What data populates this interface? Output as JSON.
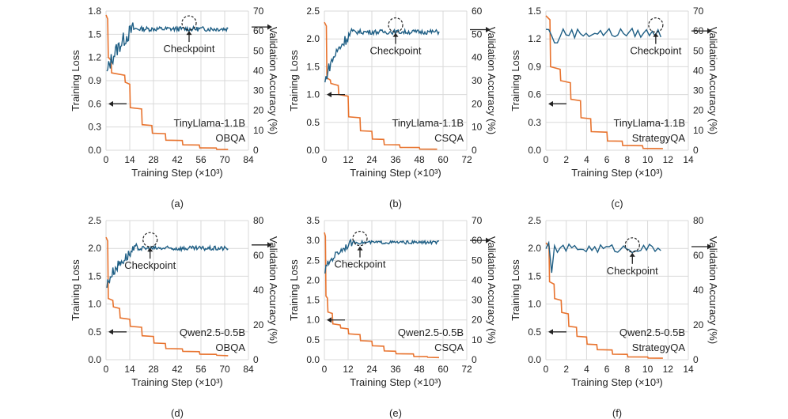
{
  "figure": {
    "loss_color": "#E8732E",
    "acc_color": "#1F5F85",
    "grid_color": "#D9D9D9",
    "common": {
      "xlabel": "Training Step (×10³)",
      "ylabel_left": "Training Loss",
      "ylabel_right": "Validation Accuracy (%)",
      "checkpoint_label": "Checkpoint"
    }
  },
  "chart_data": [
    {
      "type": "line",
      "panel": "(a)",
      "model": "TinyLlama-1.1B",
      "dataset": "OBQA",
      "xlim": [
        0,
        84
      ],
      "xticks": [
        0,
        14,
        28,
        42,
        56,
        70,
        84
      ],
      "ylim_left": [
        0,
        1.8
      ],
      "yticks_left": [
        0,
        0.3,
        0.6,
        0.9,
        1.2,
        1.5,
        1.8
      ],
      "ylim_right": [
        0,
        70
      ],
      "yticks_right": [
        0,
        10,
        20,
        30,
        40,
        50,
        60,
        70
      ],
      "loss_curve": {
        "x_end": 72,
        "start": 1.75,
        "steps": [
          [
            1,
            1.2
          ],
          [
            3,
            1.0
          ],
          [
            11,
            0.88
          ],
          [
            14,
            0.55
          ],
          [
            21,
            0.33
          ],
          [
            27,
            0.22
          ],
          [
            35,
            0.13
          ],
          [
            45,
            0.07
          ],
          [
            55,
            0.03
          ],
          [
            65,
            0.01
          ]
        ]
      },
      "acc_curve": {
        "x_start": 0.5,
        "x_end": 72,
        "start": 33,
        "plateau": 61,
        "rise_end": 16,
        "noise": 4.0,
        "tail_noise": 1.2,
        "n": 140
      },
      "checkpoint_x": 49,
      "checkpoint_acc": 64,
      "left_arrow_y": 0.6,
      "right_arrow_y": 62,
      "label_pos": "bottom-right",
      "checkpoint_label_pos": "below"
    },
    {
      "type": "line",
      "panel": "(b)",
      "model": "TinyLlama-1.1B",
      "dataset": "CSQA",
      "xlim": [
        0,
        72
      ],
      "xticks": [
        0,
        12,
        24,
        36,
        48,
        60,
        72
      ],
      "ylim_left": [
        0,
        2.5
      ],
      "yticks_left": [
        0,
        0.5,
        1.0,
        1.5,
        2.0,
        2.5
      ],
      "ylim_right": [
        0,
        60
      ],
      "yticks_right": [
        0,
        10,
        20,
        30,
        40,
        50,
        60
      ],
      "loss_curve": {
        "x_end": 57,
        "start": 2.3,
        "steps": [
          [
            1,
            1.3
          ],
          [
            3,
            1.2
          ],
          [
            7,
            1.0
          ],
          [
            12,
            0.6
          ],
          [
            18,
            0.35
          ],
          [
            24,
            0.2
          ],
          [
            30,
            0.1
          ],
          [
            38,
            0.05
          ],
          [
            48,
            0.02
          ]
        ]
      },
      "acc_curve": {
        "x_start": 0.3,
        "x_end": 58,
        "start": 25,
        "plateau": 51,
        "rise_end": 14,
        "noise": 2.5,
        "tail_noise": 1.0,
        "n": 120
      },
      "checkpoint_x": 36,
      "checkpoint_acc": 54,
      "left_arrow_y": 1.0,
      "right_arrow_y": 52,
      "label_pos": "bottom-right",
      "checkpoint_label_pos": "below"
    },
    {
      "type": "line",
      "panel": "(c)",
      "model": "TinyLlama-1.1B",
      "dataset": "StrategyQA",
      "xlim": [
        0,
        14
      ],
      "xticks": [
        0,
        2,
        4,
        6,
        8,
        10,
        12,
        14
      ],
      "ylim_left": [
        0,
        1.5
      ],
      "yticks_left": [
        0,
        0.3,
        0.6,
        0.9,
        1.2,
        1.5
      ],
      "ylim_right": [
        0,
        70
      ],
      "yticks_right": [
        0,
        10,
        20,
        30,
        40,
        50,
        60,
        70
      ],
      "loss_curve": {
        "x_end": 11.5,
        "start": 1.45,
        "steps": [
          [
            0.4,
            0.9
          ],
          [
            1.4,
            0.75
          ],
          [
            2.4,
            0.55
          ],
          [
            3.4,
            0.35
          ],
          [
            4.4,
            0.2
          ],
          [
            6,
            0.1
          ],
          [
            7.5,
            0.05
          ],
          [
            9.5,
            0.02
          ]
        ]
      },
      "acc_curve": {
        "x_start": 0,
        "x_end": 11.3,
        "start": 61,
        "plateau": 59,
        "rise_end": 0.5,
        "noise": 2.5,
        "tail_noise": 2.5,
        "n": 40,
        "dip_at": 1.0,
        "dip_val": 54
      },
      "checkpoint_x": 10.8,
      "checkpoint_acc": 63,
      "left_arrow_y": 0.5,
      "right_arrow_y": 60,
      "label_pos": "bottom-right",
      "checkpoint_label_pos": "below"
    },
    {
      "type": "line",
      "panel": "(d)",
      "model": "Qwen2.5-0.5B",
      "dataset": "OBQA",
      "xlim": [
        0,
        84
      ],
      "xticks": [
        0,
        14,
        28,
        42,
        56,
        70,
        84
      ],
      "ylim_left": [
        0,
        2.5
      ],
      "yticks_left": [
        0,
        0.5,
        1.0,
        1.5,
        2.0,
        2.5
      ],
      "ylim_right": [
        0,
        80
      ],
      "yticks_right": [
        0,
        20,
        40,
        60,
        80
      ],
      "loss_curve": {
        "x_end": 72,
        "start": 2.2,
        "steps": [
          [
            1,
            1.1
          ],
          [
            4,
            0.95
          ],
          [
            8,
            0.75
          ],
          [
            14,
            0.6
          ],
          [
            21,
            0.43
          ],
          [
            28,
            0.3
          ],
          [
            35,
            0.2
          ],
          [
            45,
            0.15
          ],
          [
            55,
            0.1
          ],
          [
            65,
            0.08
          ]
        ]
      },
      "acc_curve": {
        "x_start": 0.5,
        "x_end": 72,
        "start": 38,
        "plateau": 64,
        "rise_end": 18,
        "noise": 3.0,
        "tail_noise": 1.3,
        "n": 140
      },
      "checkpoint_x": 26,
      "checkpoint_acc": 69,
      "left_arrow_y": 0.5,
      "right_arrow_y": 66,
      "label_pos": "bottom-right",
      "checkpoint_label_pos": "below"
    },
    {
      "type": "line",
      "panel": "(e)",
      "model": "Qwen2.5-0.5B",
      "dataset": "CSQA",
      "xlim": [
        0,
        72
      ],
      "xticks": [
        0,
        12,
        24,
        36,
        48,
        60,
        72
      ],
      "ylim_left": [
        0,
        3.5
      ],
      "yticks_left": [
        0,
        0.5,
        1.0,
        1.5,
        2.0,
        2.5,
        3.0,
        3.5
      ],
      "ylim_right": [
        0,
        70
      ],
      "yticks_right": [
        0,
        10,
        20,
        30,
        40,
        50,
        60,
        70
      ],
      "loss_curve": {
        "x_end": 58,
        "start": 3.2,
        "steps": [
          [
            0.5,
            1.6
          ],
          [
            1.5,
            1.2
          ],
          [
            4,
            0.9
          ],
          [
            8,
            0.8
          ],
          [
            12,
            0.65
          ],
          [
            18,
            0.48
          ],
          [
            24,
            0.35
          ],
          [
            30,
            0.22
          ],
          [
            36,
            0.15
          ],
          [
            45,
            0.08
          ],
          [
            52,
            0.06
          ]
        ]
      },
      "acc_curve": {
        "x_start": 0.3,
        "x_end": 58,
        "start": 42,
        "plateau": 59,
        "rise_end": 14,
        "noise": 1.8,
        "tail_noise": 0.8,
        "n": 120
      },
      "checkpoint_x": 18,
      "checkpoint_acc": 61,
      "left_arrow_y": 1.0,
      "right_arrow_y": 60,
      "label_pos": "bottom-right",
      "checkpoint_label_pos": "below"
    },
    {
      "type": "line",
      "panel": "(f)",
      "model": "Qwen2.5-0.5B",
      "dataset": "StrategyQA",
      "xlim": [
        0,
        14
      ],
      "xticks": [
        0,
        2,
        4,
        6,
        8,
        10,
        12,
        14
      ],
      "ylim_left": [
        0,
        2.5
      ],
      "yticks_left": [
        0,
        0.5,
        1.0,
        1.5,
        2.0,
        2.5
      ],
      "ylim_right": [
        0,
        80
      ],
      "yticks_right": [
        0,
        20,
        40,
        60,
        80
      ],
      "loss_curve": {
        "x_end": 11.5,
        "start": 2.1,
        "steps": [
          [
            0.3,
            1.4
          ],
          [
            0.8,
            1.1
          ],
          [
            1.5,
            0.85
          ],
          [
            2.2,
            0.6
          ],
          [
            3.0,
            0.42
          ],
          [
            4.0,
            0.28
          ],
          [
            5.0,
            0.18
          ],
          [
            6.5,
            0.1
          ],
          [
            8,
            0.05
          ],
          [
            10,
            0.03
          ]
        ]
      },
      "acc_curve": {
        "x_start": 0,
        "x_end": 11.3,
        "start": 66,
        "plateau": 64,
        "rise_end": 0.8,
        "noise": 2.5,
        "tail_noise": 2.5,
        "n": 40,
        "dip_at": 0.6,
        "dip_val": 50
      },
      "checkpoint_x": 8.5,
      "checkpoint_acc": 66,
      "left_arrow_y": 0.5,
      "right_arrow_y": 65,
      "label_pos": "bottom-right",
      "checkpoint_label_pos": "below"
    }
  ]
}
